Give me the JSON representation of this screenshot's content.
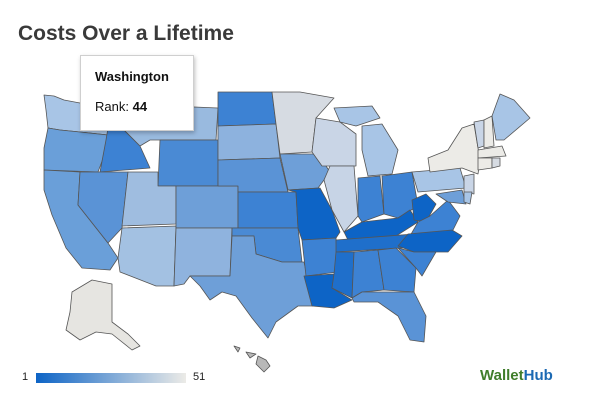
{
  "page": {
    "title": "Costs Over a Lifetime"
  },
  "tooltip": {
    "state": "Washington",
    "rank_label": "Rank:",
    "rank_value": "44"
  },
  "legend": {
    "min": "1",
    "max": "51",
    "color_low": "#0d64c6",
    "color_high": "#ecebe7"
  },
  "brand": {
    "part1": "Wallet",
    "part2": "Hub",
    "color1": "#3f7d2a",
    "color2": "#1b69b3"
  }
}
